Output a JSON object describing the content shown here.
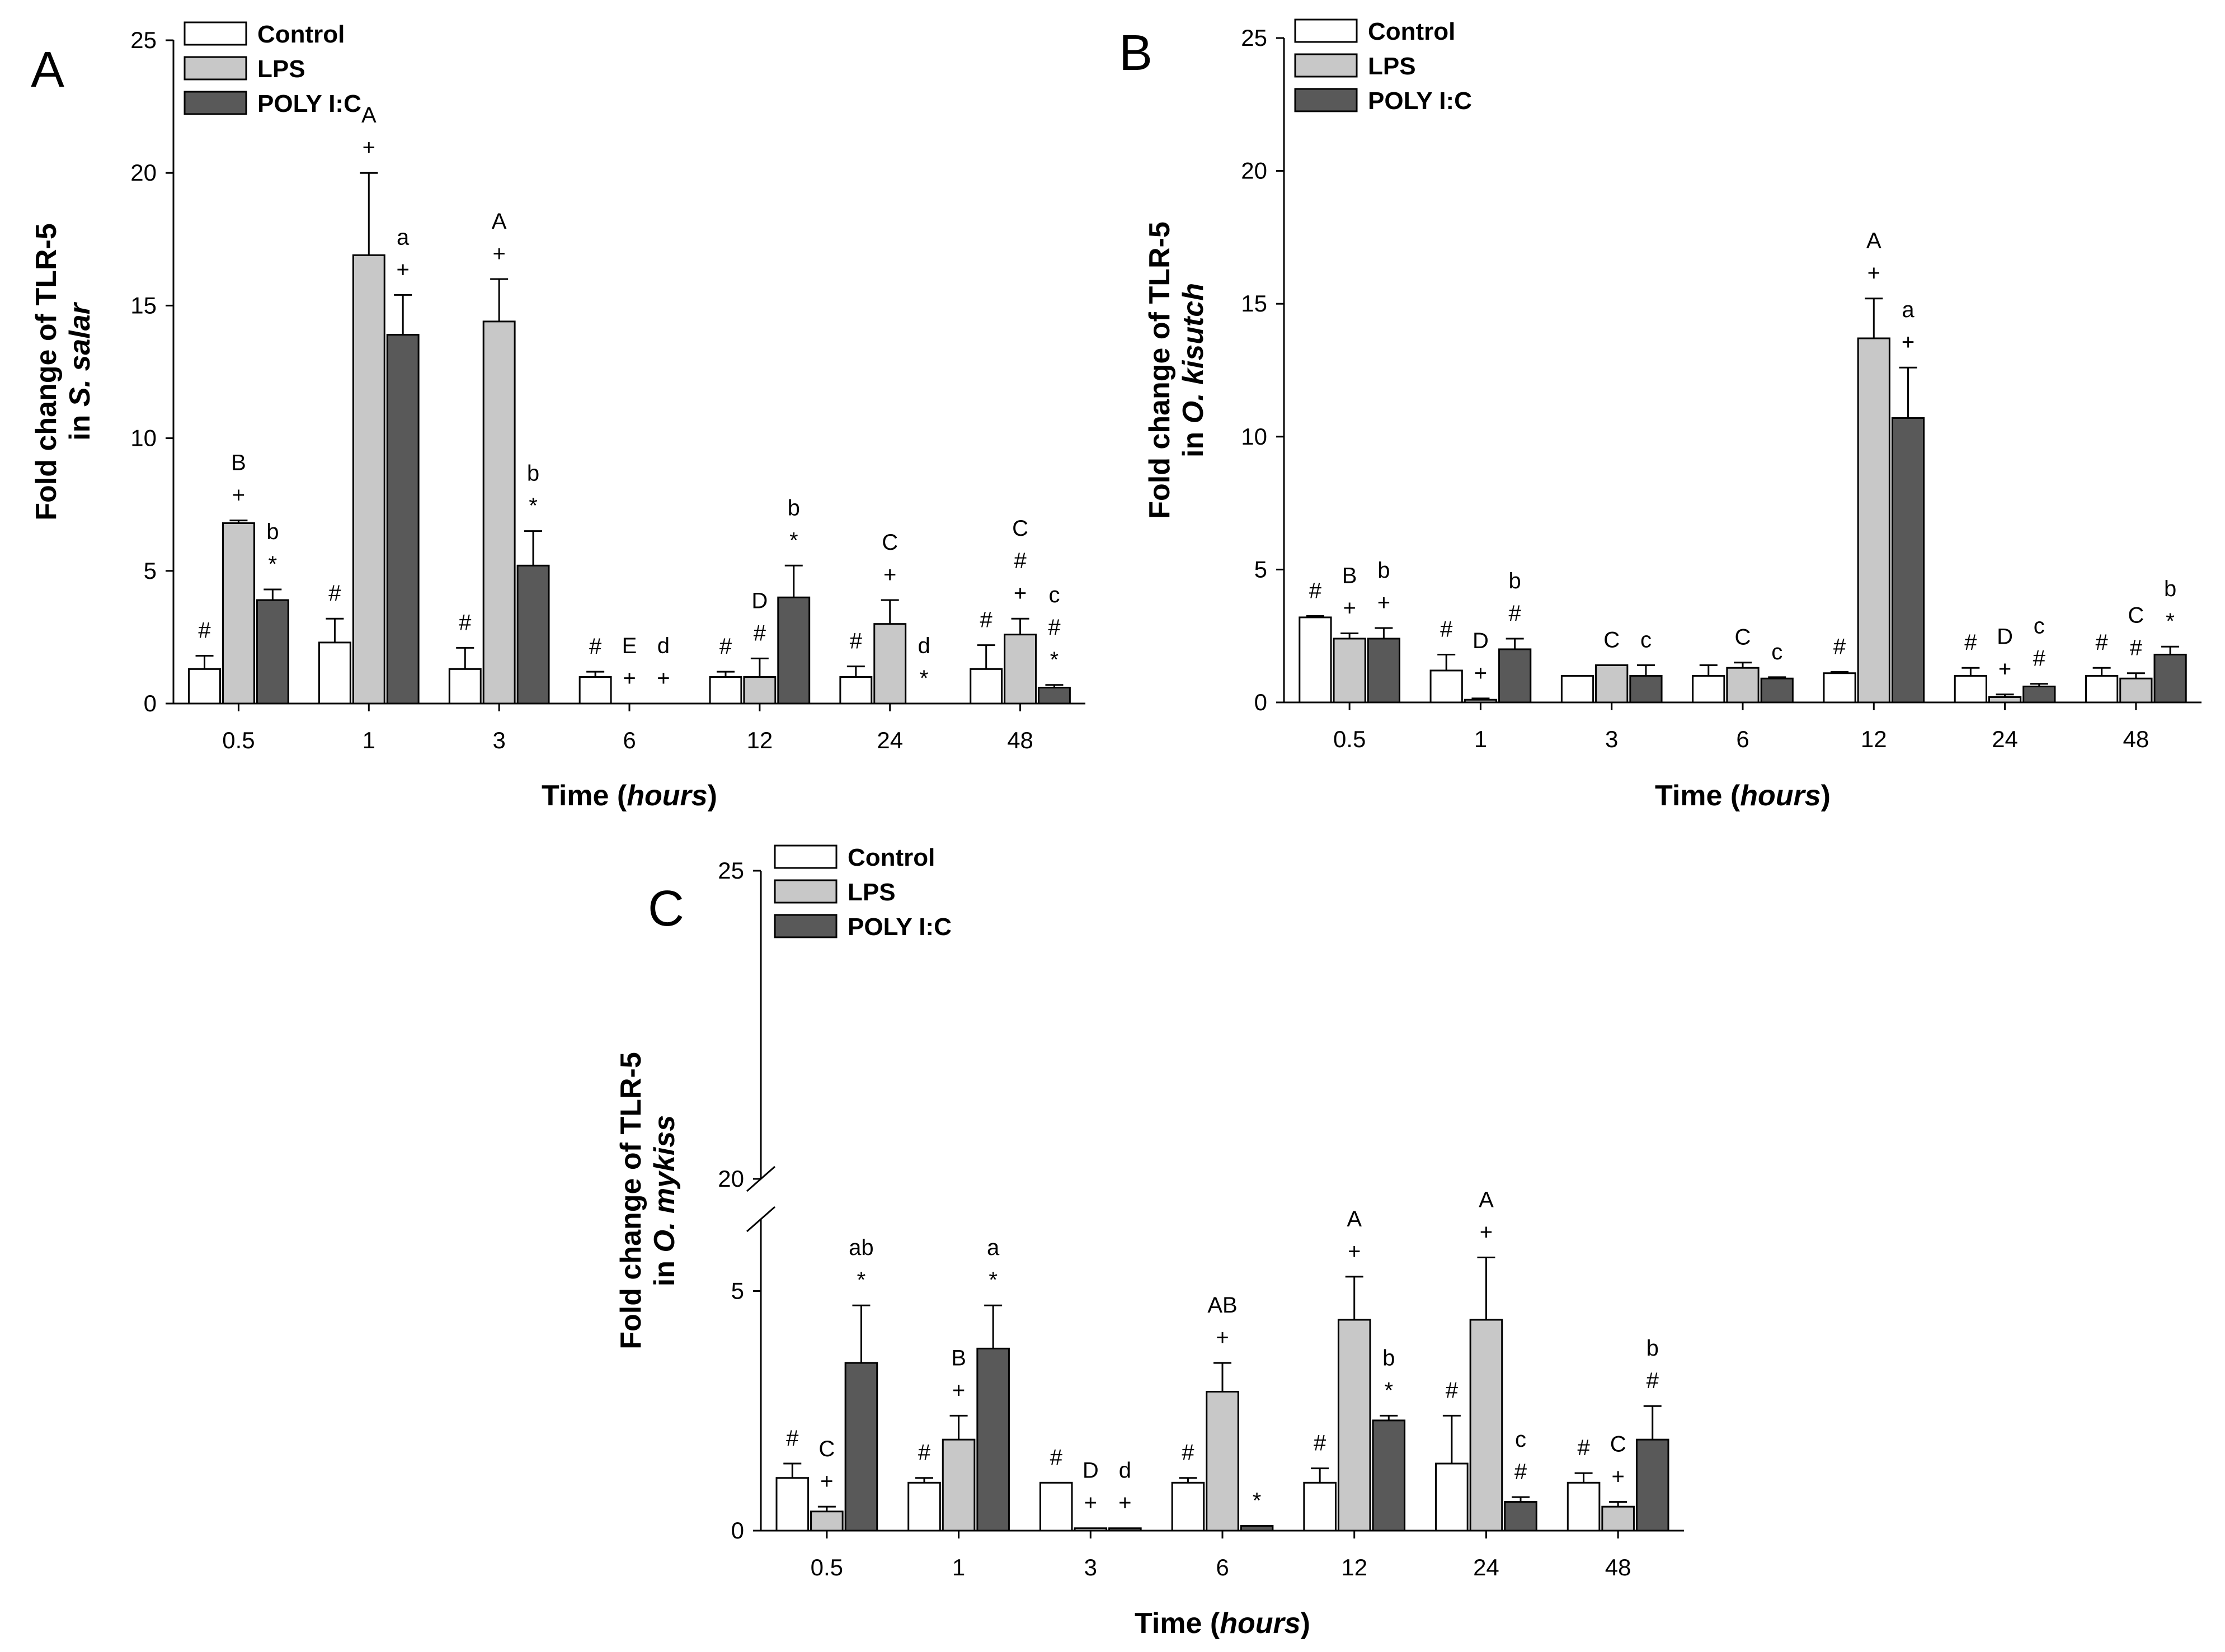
{
  "colors": {
    "Control": "#ffffff",
    "LPS": "#c8c8c8",
    "POLY I:C": "#595959"
  },
  "chart_data": [
    {
      "type": "bar",
      "panel_label": "A",
      "ylabel_line1": "Fold change of TLR-5",
      "ylabel_prefix": "in ",
      "ylabel_italic": "S. salar",
      "xlabel_prefix": "Time (",
      "xlabel_italic": "hours",
      "xlabel_suffix": ")",
      "ylim": [
        0,
        25
      ],
      "yticks": [
        "0",
        "5",
        "10",
        "15",
        "20",
        "25"
      ],
      "categories": [
        "0.5",
        "1",
        "3",
        "6",
        "12",
        "24",
        "48"
      ],
      "legend": [
        "Control",
        "LPS",
        "POLY I:C"
      ],
      "legend_position": "top-left",
      "series": [
        {
          "name": "Control",
          "values": [
            1.3,
            2.3,
            1.3,
            1.0,
            1.0,
            1.0,
            1.3
          ],
          "errors": [
            0.5,
            0.9,
            0.8,
            0.2,
            0.2,
            0.4,
            0.9
          ],
          "annotations": [
            [
              "#"
            ],
            [
              "#"
            ],
            [
              "#"
            ],
            [
              "#"
            ],
            [
              "#"
            ],
            [
              "#"
            ],
            [
              "#"
            ]
          ]
        },
        {
          "name": "LPS",
          "values": [
            6.8,
            16.9,
            14.4,
            0.0,
            1.0,
            3.0,
            2.6
          ],
          "errors": [
            0.1,
            3.1,
            1.6,
            0.0,
            0.7,
            0.9,
            0.6
          ],
          "annotations": [
            [
              "B",
              "+"
            ],
            [
              "A",
              "+"
            ],
            [
              "A",
              "+"
            ],
            [
              "E",
              "+"
            ],
            [
              "D",
              "#"
            ],
            [
              "C",
              "+"
            ],
            [
              "C",
              "#",
              "+"
            ]
          ]
        },
        {
          "name": "POLY I:C",
          "values": [
            3.9,
            13.9,
            5.2,
            0.0,
            4.0,
            0.0,
            0.6
          ],
          "errors": [
            0.4,
            1.5,
            1.3,
            0.0,
            1.2,
            0.0,
            0.1
          ],
          "annotations": [
            [
              "b",
              "*"
            ],
            [
              "a",
              "+"
            ],
            [
              "b",
              "*"
            ],
            [
              "d",
              "+"
            ],
            [
              "b",
              "*"
            ],
            [
              "d",
              "*"
            ],
            [
              "c",
              "#",
              "*"
            ]
          ]
        }
      ]
    },
    {
      "type": "bar",
      "panel_label": "B",
      "ylabel_line1": "Fold change of TLR-5",
      "ylabel_prefix": "in ",
      "ylabel_italic": "O. kisutch",
      "xlabel_prefix": "Time (",
      "xlabel_italic": "hours",
      "xlabel_suffix": ")",
      "ylim": [
        0,
        25
      ],
      "yticks": [
        "0",
        "5",
        "10",
        "15",
        "20",
        "25"
      ],
      "categories": [
        "0.5",
        "1",
        "3",
        "6",
        "12",
        "24",
        "48"
      ],
      "legend": [
        "Control",
        "LPS",
        "POLY I:C"
      ],
      "legend_position": "top-left",
      "series": [
        {
          "name": "Control",
          "values": [
            3.2,
            1.2,
            1.0,
            1.0,
            1.1,
            1.0,
            1.0
          ],
          "errors": [
            0.05,
            0.6,
            0.0,
            0.4,
            0.05,
            0.3,
            0.3
          ],
          "annotations": [
            [
              "#"
            ],
            [
              "#"
            ],
            [],
            [],
            [
              "#"
            ],
            [
              "#"
            ],
            [
              "#"
            ]
          ]
        },
        {
          "name": "LPS",
          "values": [
            2.4,
            0.1,
            1.4,
            1.3,
            13.7,
            0.2,
            0.9
          ],
          "errors": [
            0.2,
            0.05,
            0.0,
            0.2,
            1.5,
            0.1,
            0.2
          ],
          "annotations": [
            [
              "B",
              "+"
            ],
            [
              "D",
              "+"
            ],
            [
              "C"
            ],
            [
              "C"
            ],
            [
              "A",
              "+"
            ],
            [
              "D",
              "+"
            ],
            [
              "C",
              "#"
            ]
          ]
        },
        {
          "name": "POLY I:C",
          "values": [
            2.4,
            2.0,
            1.0,
            0.9,
            10.7,
            0.6,
            1.8
          ],
          "errors": [
            0.4,
            0.4,
            0.4,
            0.05,
            1.9,
            0.1,
            0.3
          ],
          "annotations": [
            [
              "b",
              "+"
            ],
            [
              "b",
              "#"
            ],
            [
              "c"
            ],
            [
              "c"
            ],
            [
              "a",
              "+"
            ],
            [
              "c",
              "#"
            ],
            [
              "b",
              "*"
            ]
          ]
        }
      ]
    },
    {
      "type": "bar",
      "panel_label": "C",
      "ylabel_line1": "Fold change of TLR-5",
      "ylabel_prefix": "in ",
      "ylabel_italic": "O. mykiss",
      "xlabel_prefix": "Time (",
      "xlabel_italic": "hours",
      "xlabel_suffix": ")",
      "ylim": [
        0,
        25
      ],
      "axis_break": [
        6.5,
        20
      ],
      "yticks": [
        "0",
        "5",
        "20",
        "25"
      ],
      "categories": [
        "0.5",
        "1",
        "3",
        "6",
        "12",
        "24",
        "48"
      ],
      "legend": [
        "Control",
        "LPS",
        "POLY I:C"
      ],
      "legend_position": "top-left",
      "series": [
        {
          "name": "Control",
          "values": [
            1.1,
            1.0,
            1.0,
            1.0,
            1.0,
            1.4,
            1.0
          ],
          "errors": [
            0.3,
            0.1,
            0.0,
            0.1,
            0.3,
            1.0,
            0.2
          ],
          "annotations": [
            [
              "#"
            ],
            [
              "#"
            ],
            [
              "#"
            ],
            [
              "#"
            ],
            [
              "#"
            ],
            [
              "#"
            ],
            [
              "#"
            ]
          ]
        },
        {
          "name": "LPS",
          "values": [
            0.4,
            1.9,
            0.05,
            2.9,
            4.4,
            4.4,
            0.5
          ],
          "errors": [
            0.1,
            0.5,
            0.0,
            0.6,
            0.9,
            1.3,
            0.1
          ],
          "annotations": [
            [
              "C",
              "+"
            ],
            [
              "B",
              "+"
            ],
            [
              "D",
              "+"
            ],
            [
              "AB",
              "+"
            ],
            [
              "A",
              "+"
            ],
            [
              "A",
              "+"
            ],
            [
              "C",
              "+"
            ]
          ]
        },
        {
          "name": "POLY I:C",
          "values": [
            3.5,
            3.8,
            0.05,
            0.1,
            2.3,
            0.6,
            1.9
          ],
          "errors": [
            1.2,
            0.9,
            0.0,
            0.0,
            0.1,
            0.1,
            0.7
          ],
          "annotations": [
            [
              "ab",
              "*"
            ],
            [
              "a",
              "*"
            ],
            [
              "d",
              "+"
            ],
            [
              "*"
            ],
            [
              "b",
              "*"
            ],
            [
              "c",
              "#"
            ],
            [
              "b",
              "#"
            ]
          ]
        }
      ]
    }
  ]
}
